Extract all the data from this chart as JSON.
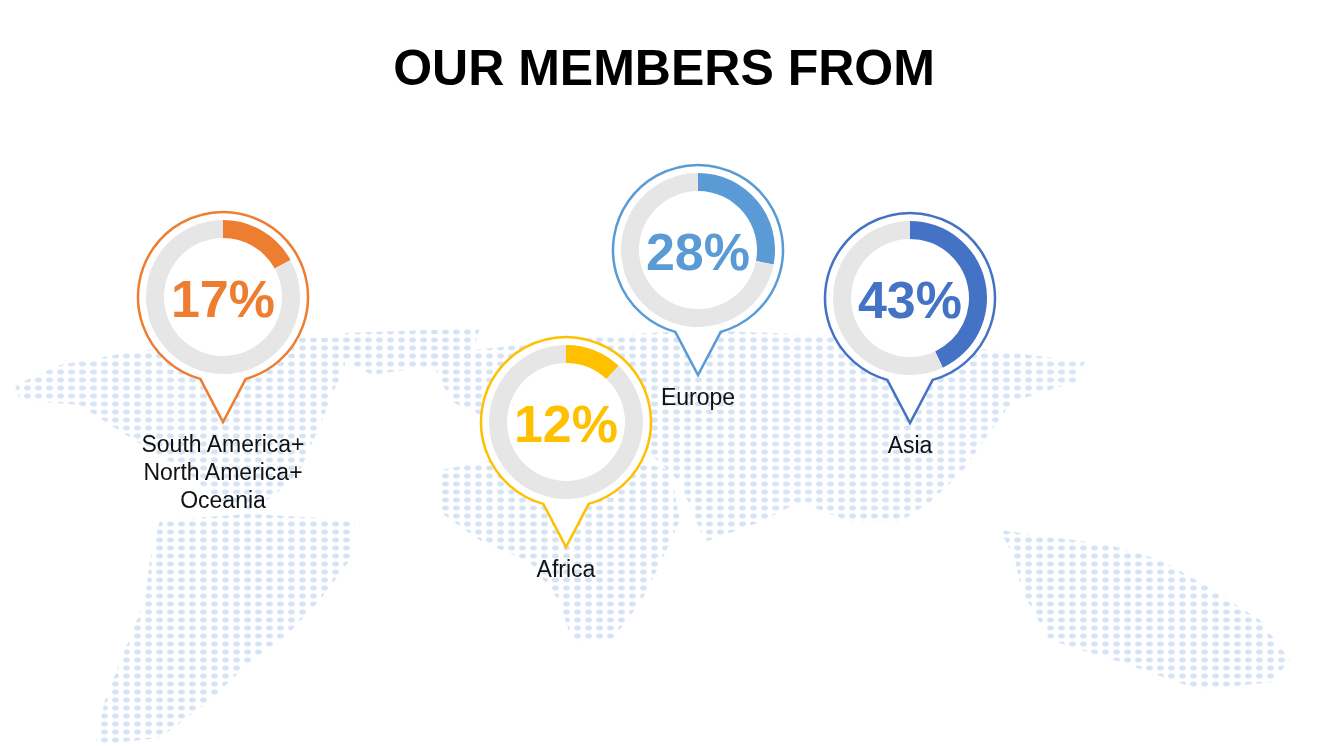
{
  "chart_data": [
    {
      "type": "other",
      "title": "OUR MEMBERS FROM"
    },
    {
      "type": "donut",
      "title": "South America+\nNorth America+\nOceania",
      "categories": [
        null,
        null
      ],
      "values": [
        17,
        83
      ],
      "colors": [
        "#ed7d31",
        "#e6e6e6"
      ],
      "annotations": [
        "17%"
      ]
    },
    {
      "type": "donut",
      "title": "Africa",
      "categories": [
        null,
        null
      ],
      "values": [
        12,
        88
      ],
      "colors": [
        "#ffc000",
        "#e6e6e6"
      ],
      "annotations": [
        "12%"
      ]
    },
    {
      "type": "donut",
      "title": "Europe",
      "categories": [
        null,
        null
      ],
      "values": [
        28,
        72
      ],
      "colors": [
        "#5b9bd5",
        "#e6e6e6"
      ],
      "annotations": [
        "28%"
      ]
    },
    {
      "type": "donut",
      "title": "Asia",
      "categories": [
        null,
        null
      ],
      "values": [
        43,
        57
      ],
      "colors": [
        "#4472c4",
        "#e6e6e6"
      ],
      "annotations": [
        "43%"
      ]
    }
  ]
}
